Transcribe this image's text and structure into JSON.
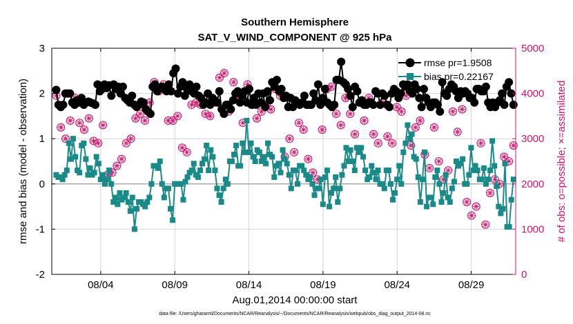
{
  "chart_data": {
    "type": "line",
    "title": "Southern Hemisphere",
    "subtitle": "SAT_V_WIND_COMPONENT @ 925 hPa",
    "xlabel": "Aug.01,2014 00:00:00 start",
    "ylabel": "rmse and bias (model - observation)",
    "y2label": "# of obs: o=possible; ×=assimilated",
    "footnote": "data file: /Users/gharamti/Documents/NCAR/Reanalysis/~/Documents/NCAR/Reanalysis/webpub/obs_diag_output_2014-08.nc",
    "xlim": [
      0.7,
      32.0
    ],
    "ylim": [
      -2,
      3
    ],
    "y2lim": [
      0,
      5000
    ],
    "xticks": [
      4,
      9,
      14,
      19,
      24,
      29
    ],
    "xtick_labels": [
      "08/04",
      "08/09",
      "08/14",
      "08/19",
      "08/24",
      "08/29"
    ],
    "yticks": [
      -2,
      -1,
      0,
      1,
      2,
      3
    ],
    "ytick_labels": [
      "-2",
      "-1",
      "0",
      "1",
      "2",
      "3"
    ],
    "y2ticks": [
      0,
      1000,
      2000,
      3000,
      4000,
      5000
    ],
    "y2tick_labels": [
      "0",
      "1000",
      "2000",
      "3000",
      "4000",
      "5000"
    ],
    "legend_position": "top-right",
    "colors": {
      "rmse": "#000000",
      "bias": "#1a8a88",
      "obs": "#d0136b",
      "right_axis": "#d0136b",
      "zero_line": "#aaaaaa",
      "grid": "#d6d6d6"
    },
    "series": [
      {
        "name": "rmse",
        "label": "rmse pr=1.9508",
        "axis": "left",
        "values": [
          2.08,
          1.75,
          1.7,
          1.75,
          2.0,
          2.0,
          2.0,
          1.8,
          1.75,
          1.85,
          1.8,
          1.9,
          1.75,
          1.8,
          1.82,
          1.8,
          1.78,
          1.75,
          2.2,
          2.05,
          2.1,
          2.2,
          2.12,
          2.18,
          1.95,
          2.2,
          2.1,
          2.15,
          2.0,
          2.15,
          1.9,
          1.85,
          1.8,
          1.95,
          1.75,
          1.7,
          1.75,
          1.82,
          1.8,
          1.65,
          1.6,
          1.55,
          2.15,
          2.2,
          2.05,
          2.1,
          2.15,
          2.1,
          2.05,
          2.2,
          2.05,
          2.45,
          2.55,
          2.0,
          2.15,
          2.25,
          1.95,
          2.1,
          2.2,
          2.05,
          2.0,
          2.15,
          1.95,
          1.9,
          1.75,
          1.8,
          2.0,
          1.75,
          1.9,
          1.85,
          1.8,
          2.05,
          1.65,
          1.55,
          1.75,
          1.75,
          1.65,
          1.85,
          2.0,
          2.05,
          1.8,
          1.95,
          2.05,
          1.8,
          2.1,
          1.75,
          1.9,
          1.75,
          2.0,
          1.8,
          2.0,
          1.7,
          2.05,
          1.85,
          2.25,
          2.15,
          2.3,
          2.05,
          2.1,
          1.9,
          1.95,
          1.7,
          1.9,
          1.7,
          1.85,
          1.8,
          1.75,
          1.8,
          1.95,
          1.75,
          1.75,
          1.75,
          2.0,
          1.85,
          2.2,
          1.75,
          1.9,
          2.1,
          1.8,
          1.75,
          1.7,
          1.75,
          2.3,
          2.3,
          2.7,
          2.25,
          2.2,
          2.1,
          1.95,
          1.7,
          2.15,
          2.05,
          1.8,
          1.85,
          1.75,
          1.75,
          1.8,
          1.8,
          1.75,
          2.05,
          2.0,
          1.75,
          2.0,
          1.95,
          1.75,
          1.7,
          2.0,
          2.1,
          2.05,
          1.9,
          2.0,
          2.2,
          2.15,
          2.2,
          2.05,
          2.0,
          2.2,
          2.1,
          1.9,
          1.7,
          2.1,
          1.9,
          1.8,
          1.7,
          1.8,
          1.8,
          1.75,
          1.6,
          2.25,
          2.0,
          1.95,
          2.1,
          2.2,
          2.15,
          2.05,
          1.9,
          2.05,
          2.0,
          2.05,
          2.0,
          1.9,
          1.9,
          1.8,
          2.1,
          2.1,
          2.05,
          2.05,
          2.15,
          1.8,
          1.7,
          1.8,
          1.7,
          1.8,
          1.85,
          2.0,
          1.75,
          2.15,
          2.25,
          2.0,
          1.75
        ]
      },
      {
        "name": "bias",
        "label": "bias pr=0.22167",
        "axis": "left",
        "values": [
          0.2,
          0.15,
          0.15,
          0.1,
          0.2,
          0.3,
          0.9,
          0.55,
          1.0,
          0.6,
          0.3,
          0.25,
          0.85,
          0.9,
          0.55,
          0.2,
          0.35,
          0.2,
          0.25,
          0.6,
          0.45,
          0.1,
          0.2,
          0.0,
          0.1,
          0.3,
          0.0,
          -0.4,
          -0.3,
          -0.45,
          -0.2,
          -0.35,
          -0.3,
          -0.2,
          -0.4,
          -0.6,
          -0.3,
          -1.0,
          -0.55,
          -0.4,
          -0.4,
          -0.45,
          -0.5,
          -0.4,
          -0.3,
          0.0,
          0.4,
          0.4,
          0.35,
          0.5,
          0.0,
          -0.3,
          -0.1,
          -0.1,
          -0.55,
          -0.8,
          0.0,
          0.0,
          0.0,
          0.0,
          -0.35,
          0.05,
          0.15,
          0.25,
          0.3,
          0.45,
          0.2,
          0.15,
          0.3,
          0.45,
          0.55,
          0.85,
          0.3,
          0.75,
          0.6,
          0.3,
          -0.1,
          -0.25,
          -0.4,
          -0.1,
          0.1,
          0.0,
          0.5,
          0.5,
          0.65,
          0.85,
          0.4,
          0.4,
          0.9,
          0.7,
          1.4,
          0.7,
          0.9,
          0.6,
          0.5,
          0.75,
          0.7,
          0.5,
          0.6,
          0.45,
          0.9,
          0.65,
          0.6,
          0.15,
          0.4,
          0.45,
          0.25,
          0.75,
          0.55,
          0.45,
          0.2,
          -0.1,
          0.3,
          0.3,
          0.0,
          0.4,
          0.4,
          0.3,
          0.2,
          0.1,
          0.15,
          0.0,
          -0.25,
          -0.1,
          -0.1,
          0.1,
          -0.45,
          0.15,
          0.3,
          -0.5,
          -0.2,
          -0.1,
          0.15,
          -0.4,
          -0.1,
          0.2,
          0.4,
          0.8,
          0.5,
          0.75,
          0.5,
          0.3,
          0.8,
          0.7,
          0.8,
          0.6,
          0.3,
          0.1,
          0.15,
          0.4,
          0.25,
          0.1,
          0.3,
          0.0,
          0.0,
          -0.1,
          0.3,
          0.3,
          0.0,
          -0.35,
          -0.2,
          0.1,
          0.4,
          0.0,
          0.7,
          0.9,
          1.3,
          1.0,
          1.1,
          0.6,
          0.55,
          0.15,
          -0.4,
          0.1,
          0.7,
          -0.5,
          -0.3,
          -0.3,
          -0.45,
          0.15,
          0.3,
          0.0,
          -0.4,
          -0.2,
          0.2,
          -0.3,
          -0.4,
          -0.1,
          0.05,
          0.5,
          0.4,
          0.45,
          0.55,
          0.0,
          0.0,
          0.2,
          0.8,
          0.3,
          0.4,
          0.3,
          0.1,
          0.1,
          0.35,
          0.0,
          0.1,
          0.3,
          0.95,
          0.4,
          -0.05,
          -0.5,
          -0.65,
          -0.55,
          0.45,
          -0.95,
          -0.95,
          -0.35,
          0.1
        ]
      },
      {
        "name": "possible",
        "label": "# of obs possible",
        "axis": "right",
        "marker": "circle-with-cross",
        "values": [
          3950,
          3250,
          3000,
          3400,
          3900,
          3350,
          3200,
          3450,
          2950,
          2900,
          3300,
          2200,
          2250,
          2400,
          2550,
          2900,
          3000,
          3450,
          3550,
          3400,
          3800,
          4250,
          4050,
          4200,
          3400,
          3400,
          3500,
          2800,
          2700,
          3750,
          3800,
          3750,
          3550,
          3500,
          3800,
          4350,
          4450,
          3600,
          4250,
          3900,
          3350,
          4200,
          3750,
          3450,
          3600,
          3750,
          3650,
          4100,
          3950,
          2600,
          3000,
          2700,
          3350,
          3200,
          2550,
          2250,
          2100,
          3200,
          4100,
          4150,
          3550,
          3300,
          3900,
          3550,
          3100,
          3800,
          3400,
          3900,
          3100,
          2900,
          3800,
          3050,
          2900,
          3700,
          3600,
          3950,
          2850,
          3250,
          3400,
          2650,
          2350,
          3250,
          2500,
          2100,
          2300,
          3600,
          3150,
          3650,
          1600,
          1300,
          1500,
          2900,
          1100,
          1800,
          2100,
          2000,
          2600,
          2500,
          2850
        ]
      },
      {
        "name": "assimilated",
        "label": "# of obs assimilated",
        "axis": "right",
        "marker": "asterisk",
        "values": [
          3950,
          3250,
          3000,
          3400,
          3900,
          3350,
          3200,
          3450,
          2950,
          2900,
          3300,
          2200,
          2250,
          2400,
          2550,
          2900,
          3000,
          3450,
          3550,
          3400,
          3800,
          4250,
          4050,
          4200,
          3400,
          3400,
          3500,
          2800,
          2700,
          3750,
          3800,
          3750,
          3550,
          3500,
          3800,
          4350,
          4450,
          3600,
          4250,
          3900,
          3350,
          4200,
          3750,
          3450,
          3600,
          3750,
          3650,
          4100,
          3950,
          2600,
          3000,
          2700,
          3350,
          3200,
          2550,
          2250,
          2100,
          3200,
          4100,
          4150,
          3550,
          3300,
          3900,
          3550,
          3100,
          3800,
          3400,
          3900,
          3100,
          2900,
          3800,
          3050,
          2900,
          3700,
          3600,
          3950,
          2850,
          3250,
          3400,
          2650,
          2350,
          3250,
          2500,
          2100,
          2300,
          3600,
          3150,
          3650,
          1600,
          1300,
          1500,
          2900,
          1100,
          1800,
          2100,
          2000,
          2600,
          2500,
          2850
        ]
      }
    ]
  }
}
